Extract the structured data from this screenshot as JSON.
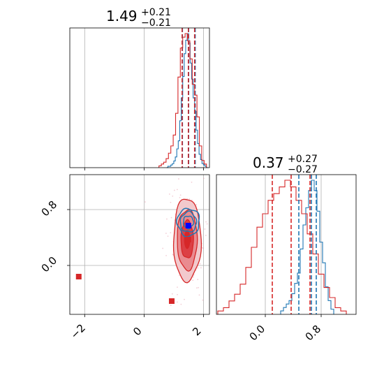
{
  "chart_data": [
    {
      "type": "histogram",
      "panel": "marginal-param-1",
      "title_value": "1.49",
      "title_plus": "+0.21",
      "title_minus": "−0.21",
      "xlim": [
        -2.5,
        2.2
      ],
      "grid": true,
      "series": [
        {
          "color": "#1f77b4",
          "edges": [
            0.75,
            0.8,
            0.85,
            0.9,
            0.95,
            1.0,
            1.05,
            1.1,
            1.15,
            1.2,
            1.25,
            1.3,
            1.35,
            1.4,
            1.45,
            1.5,
            1.55,
            1.6,
            1.65,
            1.7,
            1.75,
            1.8,
            1.85,
            1.9,
            1.95,
            2.0,
            2.05,
            2.1,
            2.15
          ],
          "counts": [
            0,
            1,
            1,
            2,
            3,
            5,
            8,
            14,
            20,
            35,
            52,
            68,
            85,
            95,
            100,
            93,
            78,
            66,
            52,
            42,
            28,
            18,
            10,
            6,
            3,
            2,
            1,
            0
          ]
        },
        {
          "color": "#d62728",
          "edges": [
            0.5,
            0.58,
            0.66,
            0.74,
            0.82,
            0.9,
            0.98,
            1.06,
            1.14,
            1.22,
            1.3,
            1.38,
            1.46,
            1.54,
            1.62,
            1.7,
            1.78,
            1.86,
            1.94,
            2.02,
            2.1
          ],
          "counts": [
            1,
            2,
            3,
            5,
            8,
            12,
            18,
            30,
            50,
            66,
            72,
            74,
            70,
            60,
            46,
            40,
            28,
            12,
            4,
            2
          ]
        }
      ],
      "quantile_lines": [
        {
          "color": "#1f77b4",
          "x": [
            1.29,
            1.5,
            1.72
          ]
        },
        {
          "color": "#d62728",
          "x": [
            1.28,
            1.49,
            1.7
          ]
        }
      ]
    },
    {
      "type": "histogram",
      "panel": "marginal-param-2",
      "title_value": "0.37",
      "title_plus": "+0.27",
      "title_minus": "−0.27",
      "xlim": [
        -0.7,
        1.3
      ],
      "xticks": [
        0.0,
        0.8
      ],
      "xtick_labels": [
        "0.0",
        "0.8"
      ],
      "grid": true,
      "series": [
        {
          "color": "#1f77b4",
          "edges": [
            0.22,
            0.26,
            0.3,
            0.34,
            0.38,
            0.42,
            0.46,
            0.5,
            0.54,
            0.58,
            0.62,
            0.66,
            0.7,
            0.74,
            0.78,
            0.82,
            0.86,
            0.9,
            0.94,
            0.98
          ],
          "counts": [
            2,
            4,
            6,
            8,
            12,
            18,
            24,
            38,
            52,
            62,
            72,
            78,
            72,
            60,
            42,
            30,
            16,
            8,
            3
          ]
        },
        {
          "color": "#d62728",
          "edges": [
            -0.68,
            -0.6,
            -0.52,
            -0.44,
            -0.36,
            -0.28,
            -0.2,
            -0.12,
            -0.04,
            0.04,
            0.12,
            0.2,
            0.28,
            0.36,
            0.44,
            0.52,
            0.6,
            0.68,
            0.76,
            0.84,
            0.92,
            1.0,
            1.08,
            1.16
          ],
          "counts": [
            1,
            2,
            4,
            6,
            9,
            14,
            20,
            26,
            30,
            34,
            36,
            38,
            40,
            38,
            34,
            30,
            24,
            18,
            12,
            8,
            5,
            2,
            1
          ]
        }
      ],
      "quantile_lines": [
        {
          "color": "#1f77b4",
          "x": [
            0.48,
            0.66,
            0.73
          ]
        },
        {
          "color": "#d62728",
          "x": [
            0.1,
            0.37,
            0.64
          ]
        }
      ]
    },
    {
      "type": "contour",
      "panel": "joint-param-1-param-2",
      "xlim": [
        -2.5,
        2.2
      ],
      "ylim": [
        -0.7,
        1.3
      ],
      "xticks": [
        -2,
        0,
        2
      ],
      "xtick_labels": [
        "−2",
        "0",
        "2"
      ],
      "yticks": [
        0.0,
        0.8
      ],
      "ytick_labels": [
        "0.0",
        "0.8"
      ],
      "grid": true,
      "series": [
        {
          "color": "#d62728",
          "center": [
            1.45,
            0.37
          ],
          "sigma": [
            0.21,
            0.27
          ],
          "levels": [
            1.0,
            1.6,
            2.2
          ]
        },
        {
          "color": "#1f77b4",
          "center": [
            1.49,
            0.62
          ],
          "sigma": [
            0.17,
            0.09
          ],
          "levels": [
            1.0,
            1.6,
            2.2
          ]
        }
      ],
      "markers": [
        {
          "color": "#d62728",
          "x": -2.2,
          "y": -0.16
        },
        {
          "color": "#d62728",
          "x": 0.93,
          "y": -0.51
        },
        {
          "color": "#d62728",
          "x": 1.49,
          "y": 0.37
        },
        {
          "color": "#0000ff",
          "x": 1.49,
          "y": 0.57
        }
      ]
    }
  ]
}
